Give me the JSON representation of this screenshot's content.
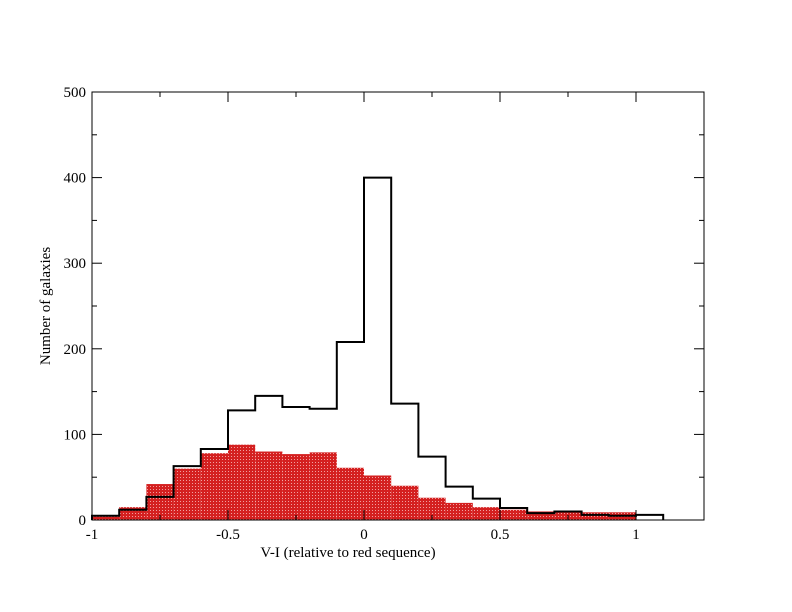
{
  "chart_data": {
    "type": "histogram",
    "xlabel": "V-I (relative to red sequence)",
    "ylabel": "Number of galaxies",
    "xlim": [
      -1,
      1.25
    ],
    "ylim": [
      0,
      500
    ],
    "x_ticks": [
      -1,
      -0.5,
      0,
      0.5,
      1
    ],
    "x_tick_labels": [
      "-1",
      "-0.5",
      "0",
      "0.5",
      "1"
    ],
    "y_ticks": [
      0,
      100,
      200,
      300,
      400,
      500
    ],
    "y_tick_labels": [
      "0",
      "100",
      "200",
      "300",
      "400",
      "500"
    ],
    "grid": false,
    "series": [
      {
        "style": "step-outline",
        "color": "#000000",
        "bin_edges": [
          -1,
          -0.9,
          -0.8,
          -0.7,
          -0.6,
          -0.5,
          -0.4,
          -0.3,
          -0.2,
          -0.1,
          0,
          0.1,
          0.2,
          0.3,
          0.4,
          0.5,
          0.6,
          0.7,
          0.8,
          0.9,
          1,
          1.1
        ],
        "counts": [
          5,
          12,
          27,
          63,
          83,
          128,
          145,
          132,
          130,
          208,
          400,
          136,
          74,
          39,
          25,
          14,
          8,
          10,
          6,
          5,
          6
        ]
      },
      {
        "style": "filled",
        "color": "#d42020",
        "bin_edges": [
          -1,
          -0.9,
          -0.8,
          -0.7,
          -0.6,
          -0.5,
          -0.4,
          -0.3,
          -0.2,
          -0.1,
          0,
          0.1,
          0.2,
          0.3,
          0.4,
          0.5,
          0.6,
          0.7,
          0.8,
          0.9,
          1
        ],
        "counts": [
          4,
          15,
          42,
          60,
          78,
          88,
          80,
          77,
          79,
          61,
          52,
          40,
          26,
          20,
          15,
          12,
          10,
          9,
          9,
          9
        ]
      }
    ]
  }
}
